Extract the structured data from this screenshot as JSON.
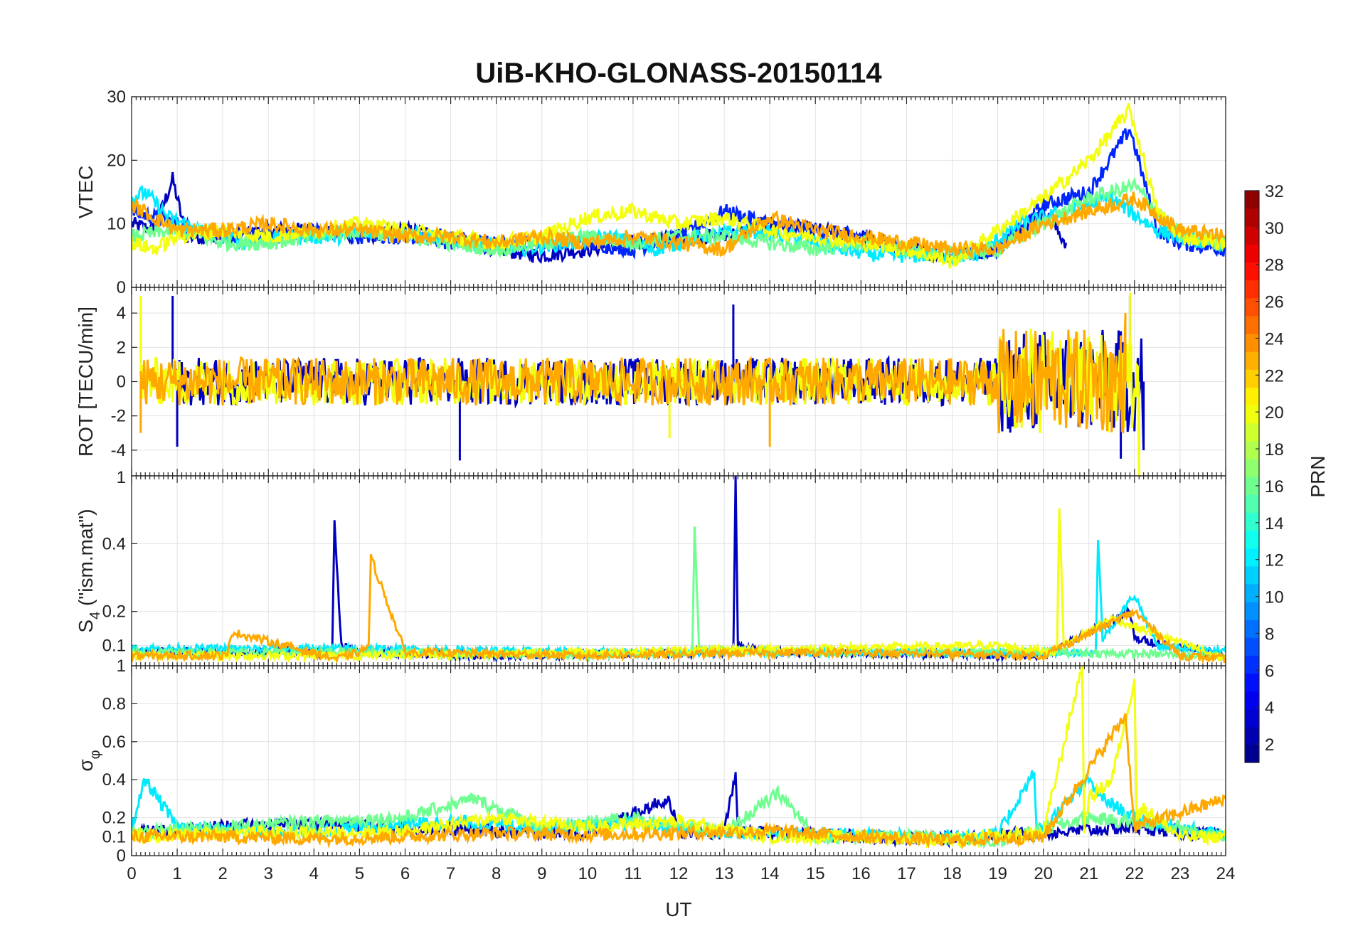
{
  "figure": {
    "title": "UiB-KHO-GLONASS-20150114",
    "xlabel": "UT",
    "x_ticks": [
      "0",
      "1",
      "2",
      "3",
      "4",
      "5",
      "6",
      "7",
      "8",
      "9",
      "10",
      "11",
      "12",
      "13",
      "14",
      "15",
      "16",
      "17",
      "18",
      "19",
      "20",
      "21",
      "22",
      "23",
      "24"
    ]
  },
  "colorbar": {
    "label": "PRN",
    "ticks": [
      "2",
      "4",
      "6",
      "8",
      "10",
      "12",
      "14",
      "16",
      "18",
      "20",
      "22",
      "24",
      "26",
      "28",
      "30",
      "32"
    ],
    "colormap": "jet",
    "range": [
      1,
      32
    ]
  },
  "panels": [
    {
      "ylabel": "VTEC",
      "ylabel_html": "VTEC",
      "y_ticks": [
        "0",
        "10",
        "20",
        "30"
      ],
      "ylim": [
        0,
        30
      ]
    },
    {
      "ylabel": "ROT [TECU/min]",
      "y_ticks": [
        "-4",
        "-2",
        "0",
        "2",
        "4"
      ],
      "ylim": [
        -5.5,
        5.5
      ]
    },
    {
      "ylabel": "S4 (\"ism.mat\")",
      "ylabel_main": "S",
      "ylabel_sub": "4",
      "ylabel_rest": " (\"ism.mat\")",
      "y_ticks": [
        "0.1",
        "0.2",
        "0.4"
      ],
      "top_tick": "1",
      "ylim": [
        0.04,
        0.6
      ]
    },
    {
      "ylabel": "σφ",
      "ylabel_main": "σ",
      "ylabel_sub": "φ",
      "y_ticks": [
        "0",
        "0.1",
        "0.2",
        "0.4",
        "0.6",
        "0.8",
        "1"
      ],
      "ylim": [
        0,
        1.0
      ]
    }
  ],
  "chart_data": [
    {
      "type": "line",
      "ylabel": "VTEC",
      "xlabel": "UT",
      "xlim": [
        0,
        24
      ],
      "ylim": [
        0,
        30
      ],
      "series": [
        {
          "prn": 3,
          "x": [
            0,
            0.5,
            0.9,
            1.2,
            2,
            3,
            4,
            5,
            6,
            7,
            8,
            9,
            10,
            11,
            12,
            13,
            14,
            15,
            16,
            17,
            18,
            19,
            20,
            20.5
          ],
          "y": [
            10,
            9,
            17,
            8,
            8,
            9,
            9,
            8,
            9,
            8,
            6,
            5,
            6,
            7,
            8,
            8,
            10,
            9,
            8,
            6,
            5,
            6,
            12,
            7
          ]
        },
        {
          "prn": 6,
          "x": [
            0,
            1,
            2,
            3,
            4,
            5,
            6,
            7,
            8,
            9,
            10,
            11,
            12,
            13,
            14,
            15,
            16,
            17,
            18,
            19,
            20,
            21,
            21.9,
            22.5,
            23,
            24
          ],
          "y": [
            12,
            10,
            8,
            8,
            9,
            8,
            8,
            7,
            7,
            7,
            7,
            6,
            8,
            12,
            10,
            9,
            8,
            6,
            5,
            6,
            13,
            15,
            25,
            9,
            7,
            6
          ]
        },
        {
          "prn": 12,
          "x": [
            0,
            0.3,
            0.8,
            1.5,
            2.5,
            3.5,
            4.5,
            5.5,
            6.5,
            7.5,
            8.5,
            9.5,
            10.5,
            11.5,
            12.5,
            13.5,
            14.5,
            15.5,
            16.5,
            17.5,
            18.5,
            19.5,
            20.5,
            21.5,
            22.5,
            23.5,
            24
          ],
          "y": [
            14,
            15,
            11,
            9,
            7,
            8,
            8,
            9,
            8,
            7,
            6,
            7,
            8,
            6,
            8,
            9,
            8,
            6,
            5,
            5,
            5,
            10,
            12,
            14,
            9,
            7,
            7
          ]
        },
        {
          "prn": 16,
          "x": [
            0,
            1,
            2,
            3,
            4,
            5,
            6,
            7,
            8,
            9,
            10,
            11,
            12,
            13,
            14,
            15,
            16,
            17,
            18,
            19,
            20,
            21,
            22,
            23,
            24
          ],
          "y": [
            8,
            9,
            7,
            7,
            8,
            9,
            8,
            7,
            6,
            7,
            8,
            7,
            8,
            8,
            7,
            6,
            7,
            6,
            5,
            6,
            10,
            14,
            16,
            8,
            7
          ]
        },
        {
          "prn": 20,
          "x": [
            0,
            0.5,
            1,
            2,
            3,
            4,
            5,
            6,
            7,
            8,
            9,
            10,
            11,
            12,
            13,
            14,
            15,
            16,
            17,
            18,
            19,
            20,
            21,
            21.9,
            22.5,
            23,
            24
          ],
          "y": [
            7,
            6,
            8,
            9,
            8,
            9,
            10,
            9,
            8,
            7,
            8,
            11,
            12,
            10,
            11,
            9,
            8,
            7,
            6,
            4,
            9,
            14,
            20,
            28,
            12,
            8,
            7
          ]
        },
        {
          "prn": 23,
          "x": [
            0,
            1,
            2,
            3,
            4,
            5,
            6,
            7,
            8,
            9,
            10,
            11,
            12,
            13,
            14,
            15,
            16,
            17,
            18,
            19,
            20,
            21,
            22,
            23,
            24
          ],
          "y": [
            13,
            9,
            9,
            10,
            9,
            9,
            8,
            8,
            7,
            8,
            7,
            8,
            7,
            6,
            11,
            9,
            8,
            7,
            6,
            6,
            10,
            12,
            14,
            9,
            8
          ]
        }
      ]
    },
    {
      "type": "line",
      "ylabel": "ROT [TECU/min]",
      "xlabel": "UT",
      "xlim": [
        0,
        24
      ],
      "ylim": [
        -5.5,
        5.5
      ],
      "series": [
        {
          "prn": 3,
          "x": [
            0.9,
            1.0,
            7.2,
            13.2,
            21.7,
            21.9,
            22.2
          ],
          "y": [
            5,
            -3.8,
            -4.6,
            4.5,
            -4.5,
            5,
            -4
          ]
        },
        {
          "prn": 20,
          "x": [
            0.2,
            11.8,
            21.9,
            22.1
          ],
          "y": [
            5,
            -3.3,
            5.2,
            -5.5
          ]
        },
        {
          "prn": 23,
          "x": [
            0.2,
            14.0,
            21.8
          ],
          "y": [
            -3,
            -3.8,
            4
          ]
        }
      ]
    },
    {
      "type": "line",
      "ylabel": "S4",
      "xlabel": "UT",
      "xlim": [
        0,
        24
      ],
      "ylim": [
        0.04,
        0.6
      ],
      "series": [
        {
          "prn": 3,
          "x": [
            0,
            4.4,
            4.45,
            4.6,
            5,
            8,
            13.2,
            13.25,
            13.3,
            14,
            20,
            21.9,
            22,
            24
          ],
          "y": [
            0.08,
            0.08,
            0.47,
            0.1,
            0.08,
            0.07,
            0.08,
            0.6,
            0.1,
            0.08,
            0.07,
            0.2,
            0.12,
            0.07
          ]
        },
        {
          "prn": 12,
          "x": [
            0,
            5,
            10,
            15,
            21.15,
            21.2,
            21.3,
            22,
            22.5,
            24
          ],
          "y": [
            0.09,
            0.09,
            0.08,
            0.08,
            0.08,
            0.41,
            0.12,
            0.25,
            0.1,
            0.08
          ]
        },
        {
          "prn": 16,
          "x": [
            0,
            5,
            10,
            12.3,
            12.35,
            12.45,
            15,
            20,
            24
          ],
          "y": [
            0.08,
            0.08,
            0.07,
            0.08,
            0.45,
            0.09,
            0.08,
            0.08,
            0.07
          ]
        },
        {
          "prn": 20,
          "x": [
            0,
            5,
            10,
            19,
            20.3,
            20.35,
            20.45,
            21.5,
            24
          ],
          "y": [
            0.07,
            0.07,
            0.08,
            0.1,
            0.08,
            0.51,
            0.1,
            0.18,
            0.06
          ]
        },
        {
          "prn": 23,
          "x": [
            0,
            2.1,
            2.2,
            4.5,
            5,
            5.2,
            5.25,
            6,
            10,
            15,
            20,
            22,
            23,
            24
          ],
          "y": [
            0.07,
            0.07,
            0.14,
            0.06,
            0.08,
            0.1,
            0.36,
            0.08,
            0.07,
            0.08,
            0.07,
            0.2,
            0.07,
            0.06
          ]
        }
      ]
    },
    {
      "type": "line",
      "ylabel": "σφ",
      "xlabel": "UT",
      "xlim": [
        0,
        24
      ],
      "ylim": [
        0,
        1.0
      ],
      "series": [
        {
          "prn": 3,
          "x": [
            0,
            2,
            4,
            6,
            8,
            10,
            11.8,
            12,
            13,
            13.25,
            13.3,
            14,
            16,
            18,
            20,
            22,
            24
          ],
          "y": [
            0.12,
            0.15,
            0.17,
            0.15,
            0.13,
            0.12,
            0.3,
            0.12,
            0.12,
            0.44,
            0.12,
            0.12,
            0.1,
            0.09,
            0.12,
            0.15,
            0.1
          ]
        },
        {
          "prn": 12,
          "x": [
            0,
            0.3,
            1,
            3,
            5,
            7,
            9,
            11,
            13,
            15,
            17,
            19,
            19.8,
            19.85,
            20,
            21,
            21.3,
            22,
            24
          ],
          "y": [
            0.15,
            0.4,
            0.15,
            0.12,
            0.15,
            0.18,
            0.15,
            0.17,
            0.12,
            0.12,
            0.1,
            0.11,
            0.44,
            0.12,
            0.15,
            0.4,
            0.3,
            0.2,
            0.1
          ]
        },
        {
          "prn": 16,
          "x": [
            0,
            2,
            4,
            6,
            7.5,
            9,
            11,
            13,
            14.2,
            15,
            17,
            19,
            21,
            23,
            24
          ],
          "y": [
            0.12,
            0.15,
            0.18,
            0.2,
            0.3,
            0.15,
            0.2,
            0.12,
            0.33,
            0.1,
            0.1,
            0.08,
            0.2,
            0.15,
            0.1
          ]
        },
        {
          "prn": 20,
          "x": [
            0,
            2,
            4,
            6,
            8,
            10,
            12,
            14,
            16,
            18,
            20,
            20.85,
            20.9,
            21,
            21.5,
            22,
            22.05,
            22.2,
            23,
            24
          ],
          "y": [
            0.1,
            0.12,
            0.12,
            0.13,
            0.2,
            0.15,
            0.18,
            0.1,
            0.1,
            0.08,
            0.12,
            1.0,
            0.15,
            0.3,
            0.4,
            0.93,
            0.2,
            0.25,
            0.1,
            0.1
          ]
        },
        {
          "prn": 23,
          "x": [
            0,
            2,
            4,
            6,
            8,
            10,
            12,
            14,
            16,
            18,
            20,
            21.8,
            22,
            24
          ],
          "y": [
            0.1,
            0.1,
            0.09,
            0.1,
            0.12,
            0.11,
            0.12,
            0.13,
            0.1,
            0.08,
            0.1,
            0.74,
            0.15,
            0.3
          ]
        }
      ]
    }
  ]
}
